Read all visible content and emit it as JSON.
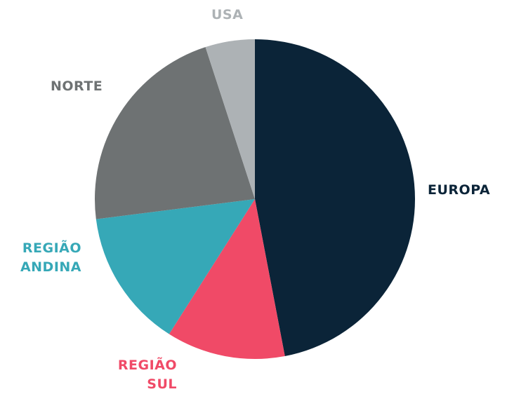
{
  "chart_data": {
    "type": "pie",
    "categories": [
      "EUROPA",
      "REGIÃO SUL",
      "REGIÃO ANDINA",
      "NORTE",
      "USA"
    ],
    "values": [
      47,
      12,
      14,
      22,
      5
    ],
    "colors": [
      "#0b2438",
      "#f04a67",
      "#36a8b7",
      "#6e7273",
      "#adb2b5"
    ]
  }
}
